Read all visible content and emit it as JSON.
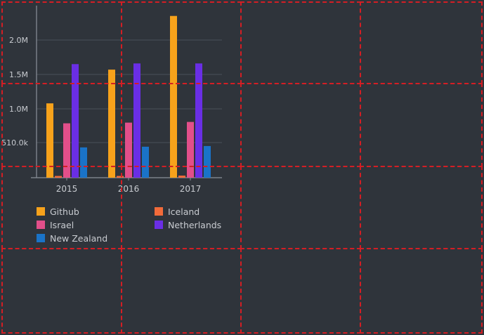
{
  "chart_data": {
    "type": "bar",
    "categories": [
      "2015",
      "2016",
      "2017"
    ],
    "series": [
      {
        "name": "Github",
        "color": "#f7a21b",
        "values": [
          1080000,
          1570000,
          2350000
        ]
      },
      {
        "name": "Iceland",
        "color": "#f26b3a",
        "values": [
          25000,
          25000,
          30000
        ]
      },
      {
        "name": "Israel",
        "color": "#e24f8a",
        "values": [
          790000,
          800000,
          810000
        ]
      },
      {
        "name": "Netherlands",
        "color": "#6a2ee5",
        "values": [
          1650000,
          1660000,
          1660000
        ]
      },
      {
        "name": "New Zealand",
        "color": "#1a73c8",
        "values": [
          440000,
          450000,
          460000
        ]
      }
    ],
    "ylim": [
      0,
      2500000
    ],
    "yticks": [
      {
        "value": 510000,
        "label": "510.0k"
      },
      {
        "value": 1000000,
        "label": "1.0M"
      },
      {
        "value": 1500000,
        "label": "1.5M"
      },
      {
        "value": 2000000,
        "label": "2.0M"
      }
    ],
    "grid": true,
    "legend_placement": "bottom"
  },
  "colors": {
    "background": "#2f343b",
    "gridline": "#4a5058",
    "axis": "#8a9099",
    "tick_text": "#c9ccd1",
    "overlay_grid": "#d41e24"
  }
}
